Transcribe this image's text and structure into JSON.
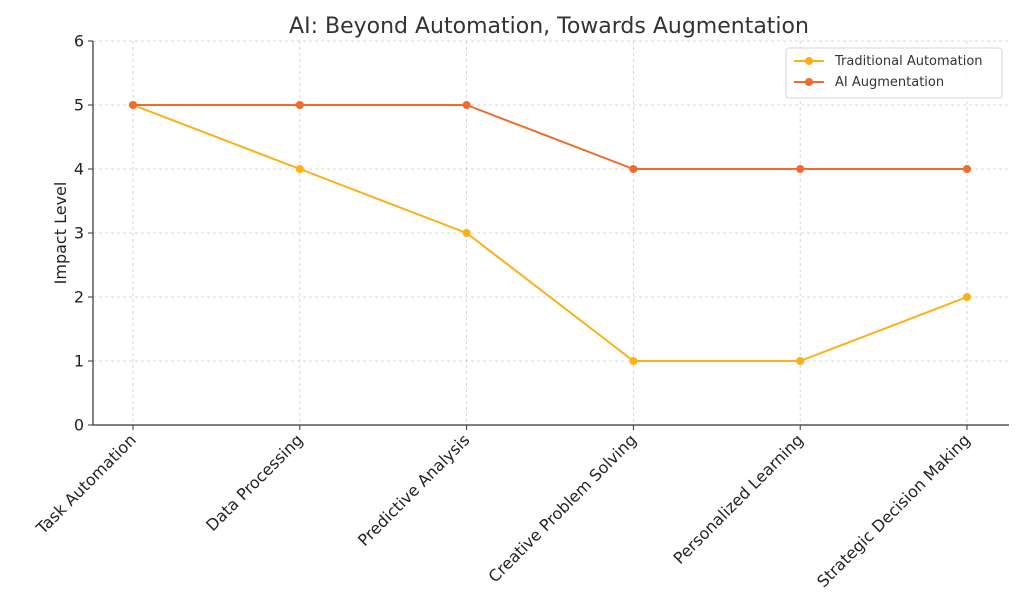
{
  "chart_data": {
    "type": "line",
    "title": "AI: Beyond Automation, Towards Augmentation",
    "xlabel": "",
    "ylabel": "Impact Level",
    "categories": [
      "Task Automation",
      "Data Processing",
      "Predictive Analysis",
      "Creative Problem Solving",
      "Personalized Learning",
      "Strategic Decision Making"
    ],
    "series": [
      {
        "name": "Traditional Automation",
        "color": "#fbb018",
        "values": [
          5,
          4,
          3,
          1,
          1,
          2
        ]
      },
      {
        "name": "AI Augmentation",
        "color": "#f26b2b",
        "values": [
          5,
          5,
          5,
          4,
          4,
          4
        ]
      }
    ],
    "ylim": [
      0,
      6
    ],
    "yticks": [
      "0",
      "1",
      "2",
      "3",
      "4",
      "5",
      "6"
    ],
    "grid": true,
    "legend_position": "top-right"
  }
}
